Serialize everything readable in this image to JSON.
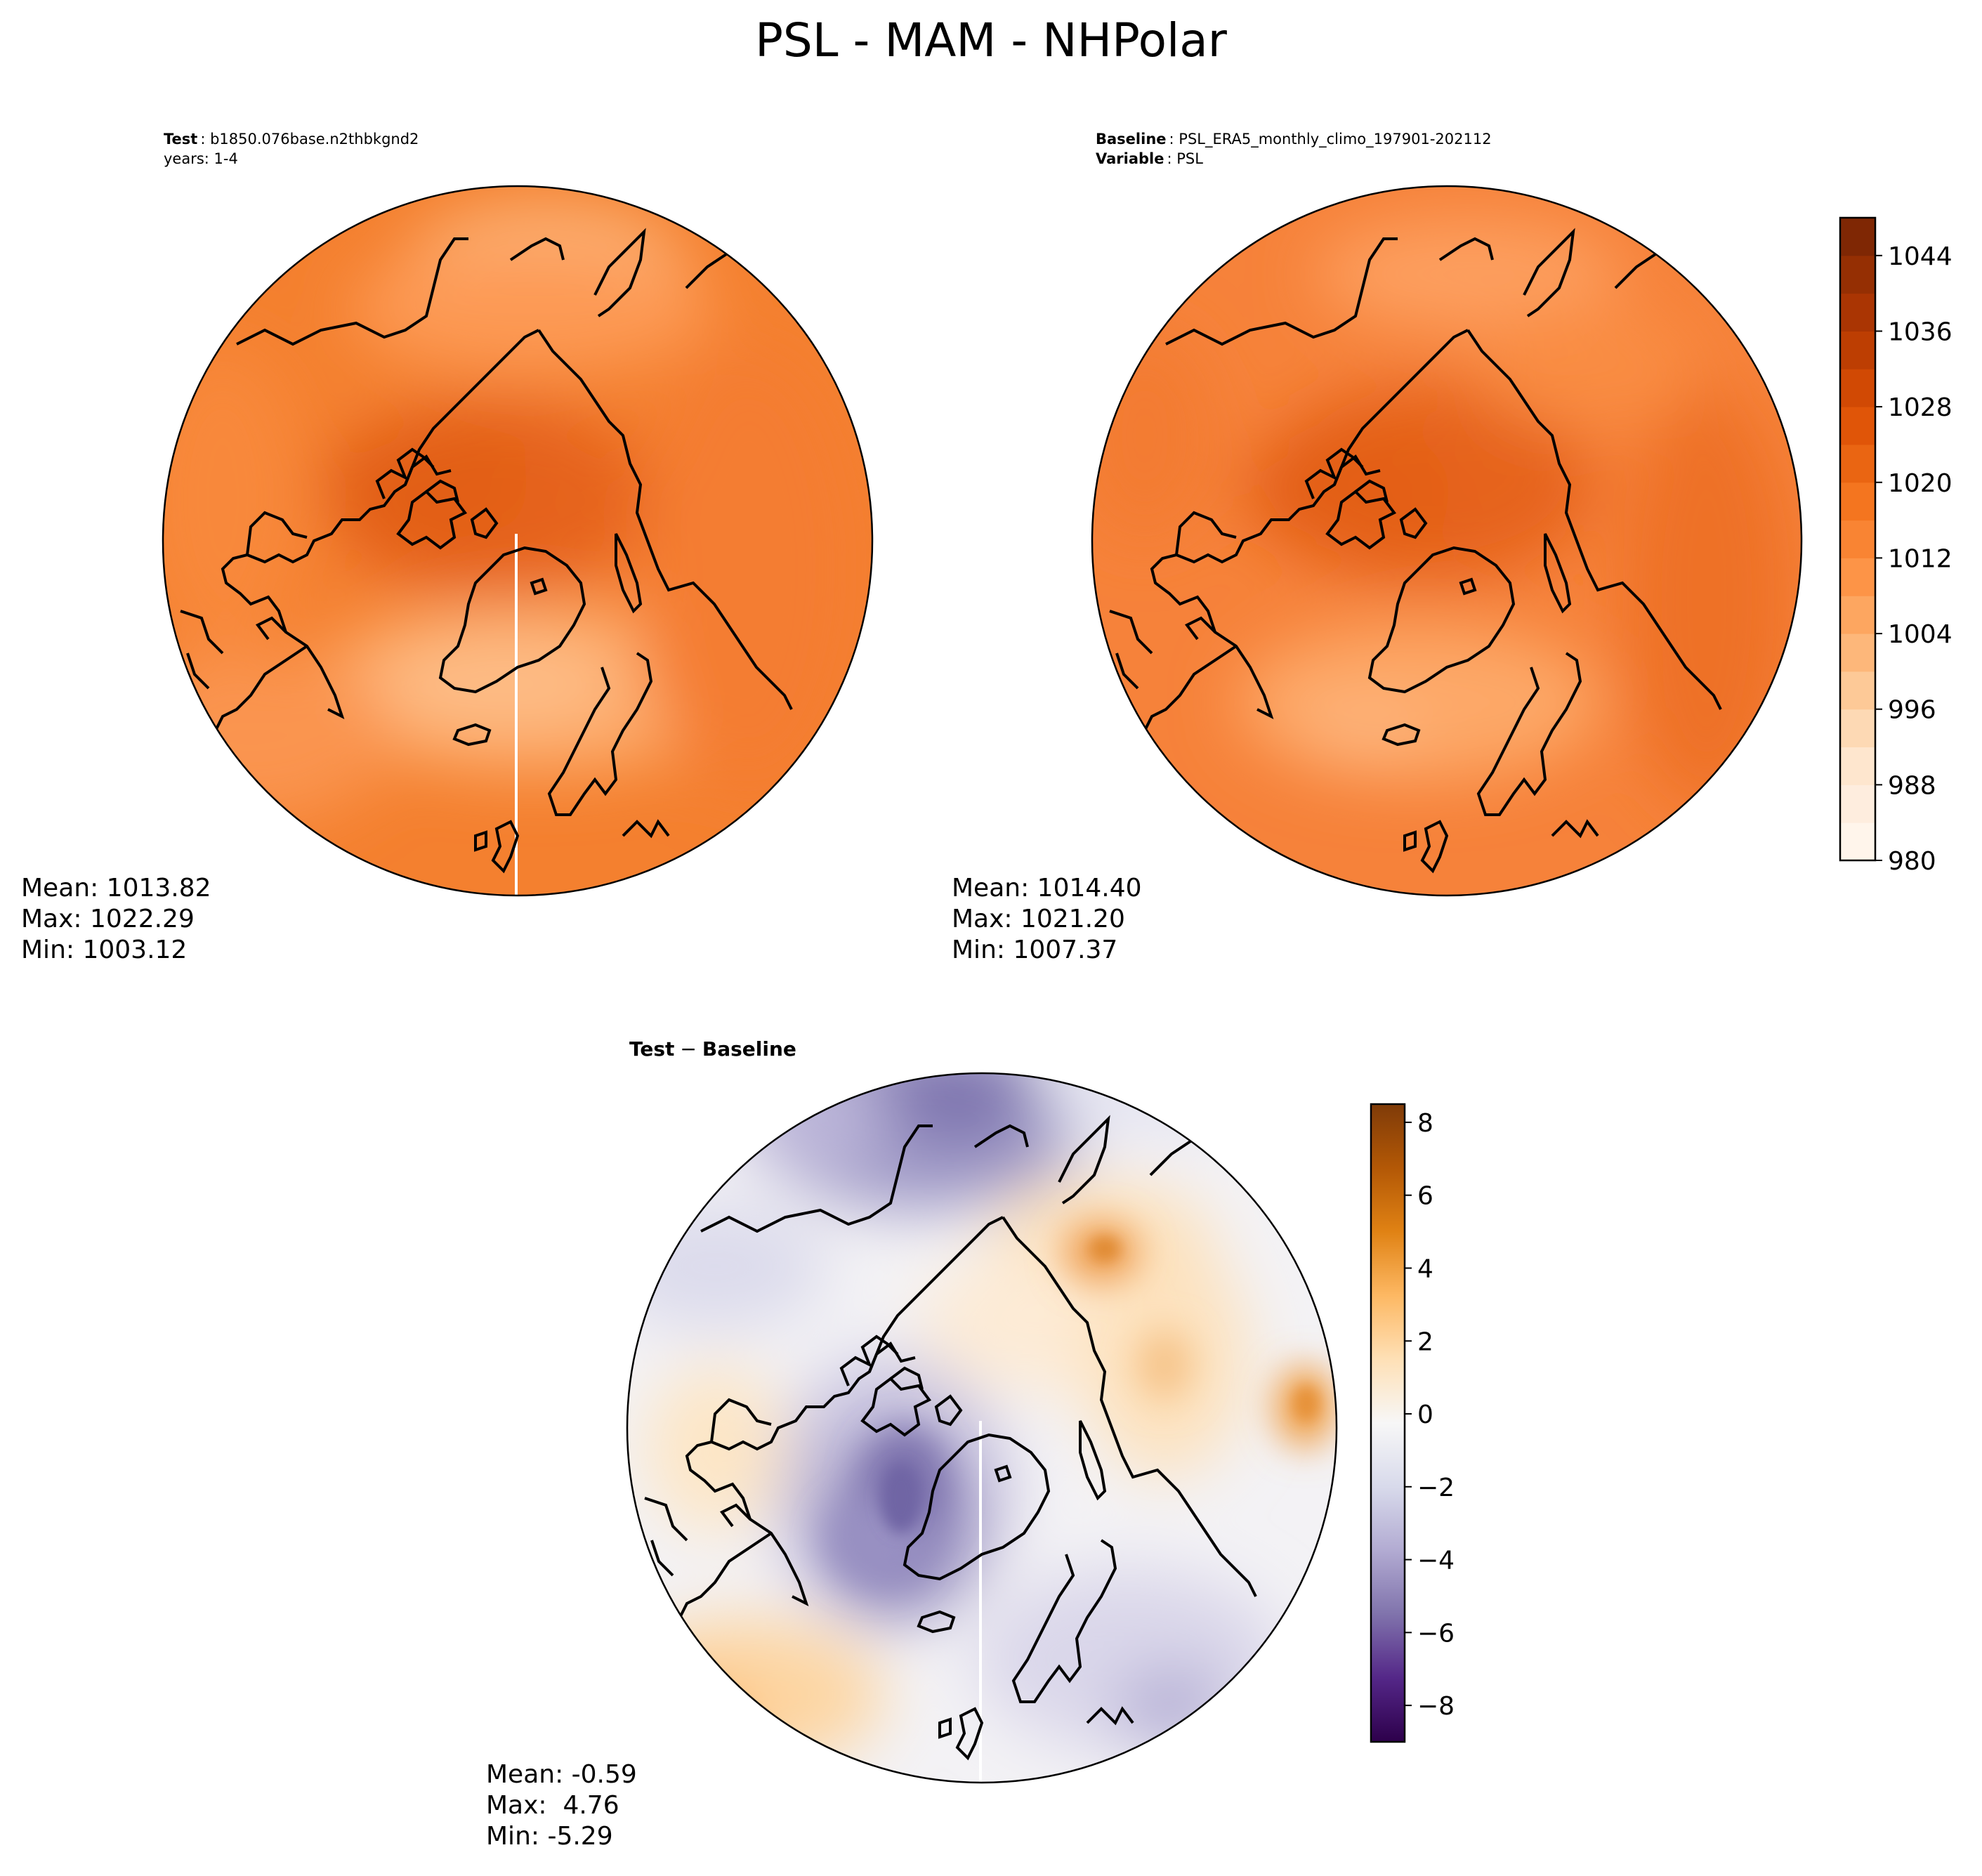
{
  "figure_title": "PSL - MAM - NHPolar",
  "test_panel": {
    "label_key": "Test",
    "label_value": "b1850.076base.n2thbkgnd2",
    "years_label": "years: 1-4",
    "stats": {
      "mean": "Mean: 1013.82",
      "max": "Max: 1022.29",
      "min": "Min: 1003.12"
    }
  },
  "baseline_panel": {
    "baseline_key": "Baseline",
    "baseline_value": "PSL_ERA5_monthly_climo_197901-202112",
    "variable_key": "Variable",
    "variable_value": "PSL",
    "stats": {
      "mean": "Mean: 1014.40",
      "max": "Max: 1021.20",
      "min": "Min: 1007.37"
    }
  },
  "diff_panel": {
    "title_left": "Test",
    "title_op": "−",
    "title_right": "Baseline",
    "stats": {
      "mean": "Mean: -0.59",
      "max": "Max:  4.76",
      "min": "Min: -5.29"
    }
  },
  "colorbar_psl": {
    "ticks": [
      "1044",
      "1036",
      "1028",
      "1020",
      "1012",
      "1004",
      "996",
      "988",
      "980"
    ],
    "range": [
      980,
      1048
    ],
    "step": 4,
    "colors": [
      "#fff5eb",
      "#feedde",
      "#fee6ce",
      "#fdd9b4",
      "#fdc997",
      "#fdb77a",
      "#fda660",
      "#fd9447",
      "#f98433",
      "#f4751f",
      "#ea6512",
      "#e05508",
      "#d14904",
      "#bd3e02",
      "#aa3503",
      "#952f03",
      "#7f2704"
    ]
  },
  "colorbar_diff": {
    "ticks": [
      "8",
      "6",
      "4",
      "2",
      "0",
      "−2",
      "−4",
      "−6",
      "−8"
    ],
    "range": [
      -9,
      8.5
    ],
    "colors": [
      "#2d004b",
      "#542788",
      "#8073ac",
      "#b2abd2",
      "#d8daeb",
      "#f7f7f7",
      "#fee0b6",
      "#fdb863",
      "#e08214",
      "#b35806",
      "#7f3b08"
    ]
  }
}
